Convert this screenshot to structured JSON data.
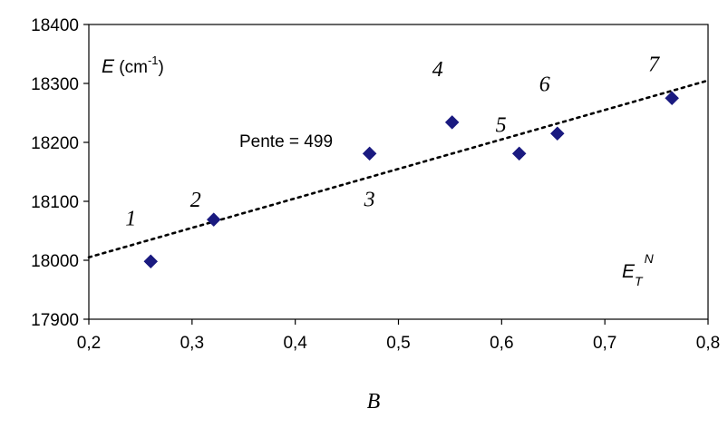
{
  "chart_data": {
    "type": "scatter",
    "xlabel": "B",
    "xlim": [
      0.2,
      0.8
    ],
    "ylim": [
      17900,
      18400
    ],
    "x_ticks": [
      0.2,
      0.3,
      0.4,
      0.5,
      0.6,
      0.7,
      0.8
    ],
    "y_ticks": [
      17900,
      18000,
      18100,
      18200,
      18300,
      18400
    ],
    "x_tick_labels": [
      "0,2",
      "0,3",
      "0,4",
      "0,5",
      "0,6",
      "0,7",
      "0,8"
    ],
    "y_tick_labels": [
      "17900",
      "18000",
      "18100",
      "18200",
      "18300",
      "18400"
    ],
    "ylabel_parts": {
      "main": "E",
      "unit_open": " (cm",
      "sup": "-1",
      "unit_close": ")"
    },
    "corner_label_parts": {
      "main": "E",
      "sub": "T",
      "sup": "N"
    },
    "grid": false,
    "marker_color": "#1a1a80",
    "series": [
      {
        "points": [
          {
            "x": 0.26,
            "y": 17998,
            "label": "1"
          },
          {
            "x": 0.321,
            "y": 18069,
            "label": "2"
          },
          {
            "x": 0.472,
            "y": 18181,
            "label": "3"
          },
          {
            "x": 0.552,
            "y": 18234,
            "label": "4"
          },
          {
            "x": 0.617,
            "y": 18181,
            "label": "5"
          },
          {
            "x": 0.654,
            "y": 18215,
            "label": "6"
          },
          {
            "x": 0.765,
            "y": 18275,
            "label": "7"
          }
        ]
      }
    ],
    "trendline": {
      "x": [
        0.2,
        0.8
      ],
      "y": [
        18005,
        18305
      ],
      "style": "dotted",
      "annotation": "Pente = 499"
    }
  }
}
